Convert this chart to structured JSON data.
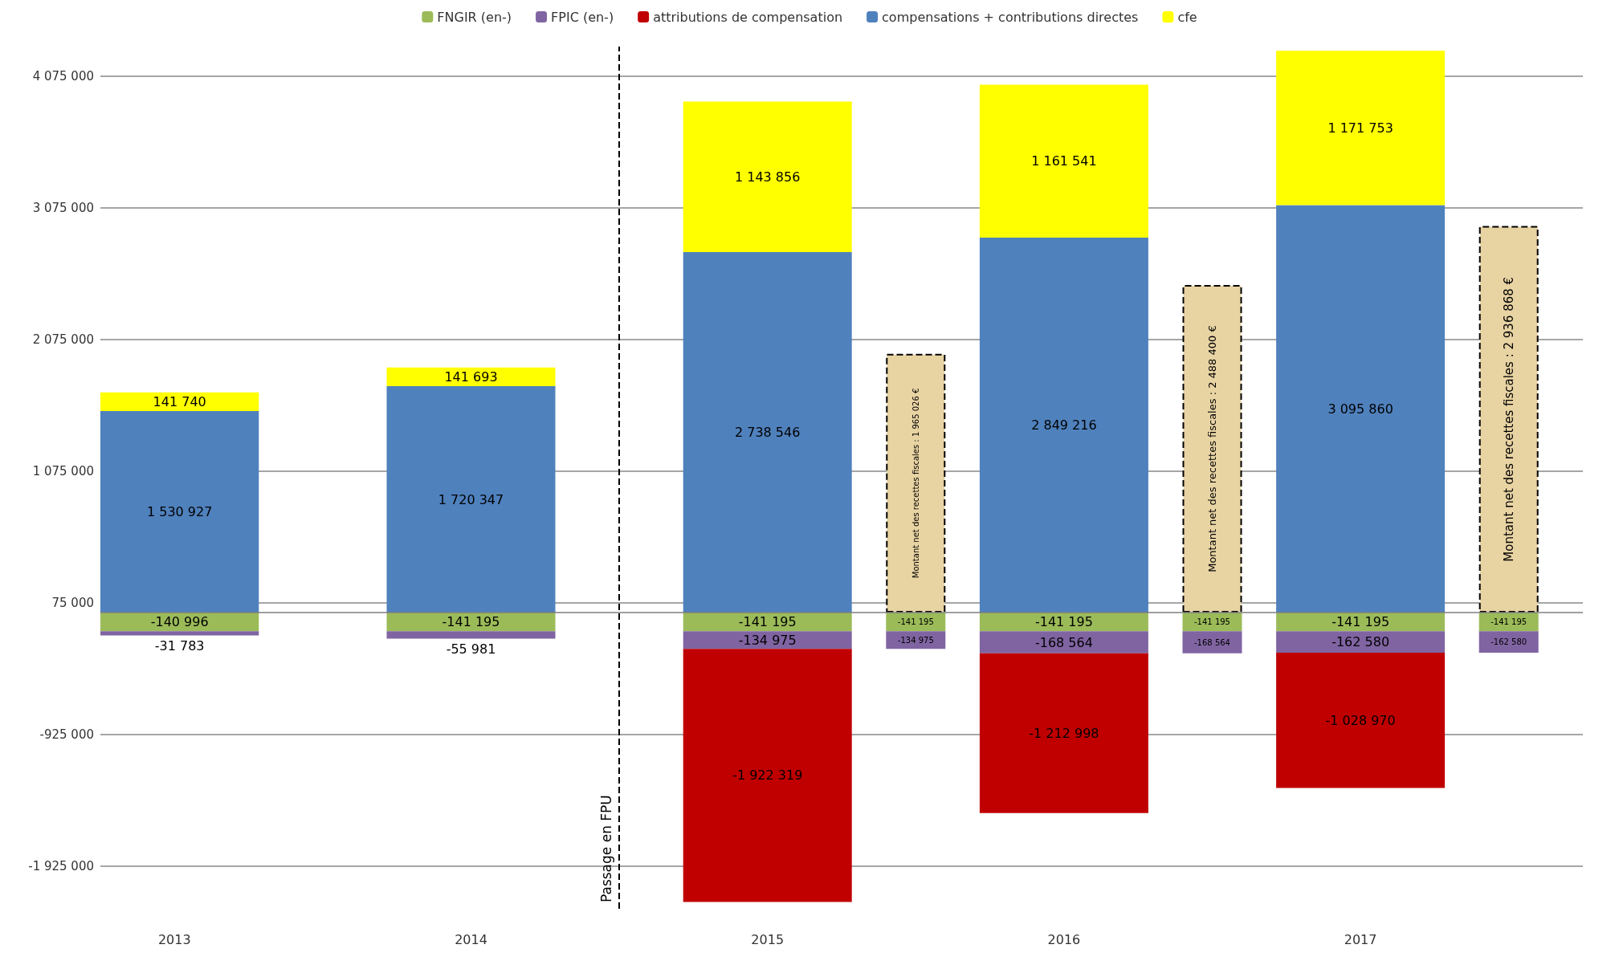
{
  "chart_data": {
    "type": "bar",
    "stacked": true,
    "x": [
      2013,
      2014,
      2015,
      2015.5,
      2016,
      2016.5,
      2017,
      2017.5
    ],
    "series": [
      {
        "name": "FNGIR (en-)",
        "color": "#9bbb59",
        "values": [
          -140996,
          -141195,
          -141195,
          -141195,
          -141195,
          -141195,
          -141195,
          -141195
        ],
        "value_labels": [
          "-140 996",
          "-141 195",
          "-141 195",
          "-141 195",
          "-141 195",
          "-141 195",
          "-141 195",
          "-141 195"
        ]
      },
      {
        "name": "FPIC (en-)",
        "color": "#8064a2",
        "values": [
          -31783,
          -55981,
          -134975,
          -134975,
          -168564,
          -168564,
          -162580,
          -162580
        ],
        "value_labels": [
          "-31 783",
          "-55 981",
          "-134 975",
          "-134 975",
          "-168 564",
          "-168 564",
          "-162 580",
          "-162 580"
        ]
      },
      {
        "name": "attributions de compensation",
        "color": "#c00000",
        "values": [
          null,
          null,
          -1922319,
          null,
          -1212998,
          null,
          -1028970,
          null
        ],
        "value_labels": [
          null,
          null,
          "-1 922 319",
          null,
          "-1 212 998",
          null,
          "-1 028 970",
          null
        ]
      },
      {
        "name": "compensations + contributions directes",
        "color": "#4f81bd",
        "values": [
          1530927,
          1720347,
          2738546,
          null,
          2849216,
          null,
          3095860,
          null
        ],
        "value_labels": [
          "1 530 927",
          "1 720 347",
          "2 738 546",
          null,
          "2 849 216",
          null,
          "3 095 860",
          null
        ]
      },
      {
        "name": "cfe",
        "color": "#ffff00",
        "values": [
          141740,
          141693,
          1143856,
          null,
          1161541,
          null,
          1171753,
          null
        ],
        "value_labels": [
          "141 740",
          "141 693",
          "1 143 856",
          null,
          "1 161 541",
          null,
          "1 171 753",
          null
        ]
      },
      {
        "color": "#e8d3a3",
        "values": [
          null,
          null,
          null,
          1965026,
          null,
          2488400,
          null,
          2936868
        ],
        "line_style": "dashed",
        "value_labels": [
          null,
          null,
          null,
          "Montant net des recettes fiscales : 1 965 026 €",
          null,
          "Montant net des recettes fiscales : 2 488 400 €",
          null,
          "Montant net des recettes fiscales : 2 936 868 €"
        ]
      }
    ],
    "xlim": [
      2012.75,
      2017.75
    ],
    "xticks": [
      2013,
      2014,
      2015,
      2016,
      2017
    ],
    "ylim": [
      -2250000,
      4300000
    ],
    "yticks": [
      -1925000,
      -925000,
      75000,
      1075000,
      2075000,
      3075000,
      4075000
    ],
    "grid": "y",
    "legend": "top",
    "ref_lines": [
      {
        "axis": "x",
        "value": 2014.5,
        "label": "Passage en FPU",
        "line_style": "dashed",
        "color": "#000000"
      },
      {
        "axis": "y",
        "value": 0,
        "color": "#7f7f7f"
      }
    ]
  }
}
